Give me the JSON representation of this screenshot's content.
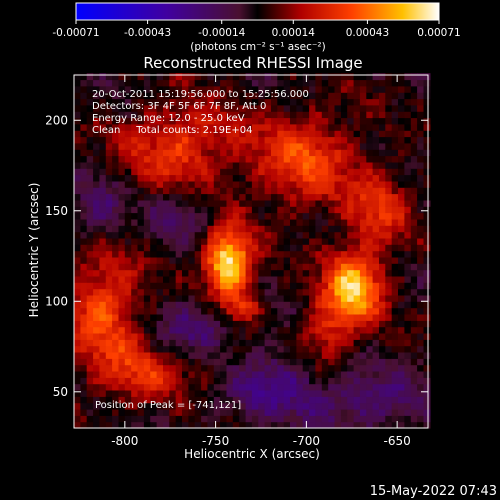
{
  "chart_data": {
    "type": "heatmap",
    "title": "Reconstructed RHESSI Image",
    "xlabel": "Heliocentric X (arcsec)",
    "ylabel": "Heliocentric Y (arcsec)",
    "xlim": [
      -828,
      -633
    ],
    "ylim": [
      30,
      225
    ],
    "xticks": [
      -800,
      -750,
      -700,
      -650
    ],
    "yticks": [
      50,
      100,
      150,
      200
    ],
    "colorbar": {
      "range": [
        -0.00071,
        0.00071
      ],
      "ticks": [
        -0.00071,
        -0.00043,
        -0.00014,
        0.00014,
        0.00043,
        0.00071
      ],
      "tick_labels": [
        "-0.00071",
        "-0.00043",
        "-0.00014",
        "0.00014",
        "0.00043",
        "0.00071"
      ],
      "unit_label": "(photons cm⁻² s⁻¹ asec⁻²)"
    },
    "annotations": [
      "20-Oct-2011 15:19:56.000 to 15:25:56.000",
      "Detectors: 3F 4F 5F 6F 7F 8F, Att 0",
      "Energy Range: 12.0 - 25.0 keV",
      "Clean     Total counts: 2.19E+04"
    ],
    "peak_label": "Position of Peak = [-741,121]",
    "peak_position": [
      -741,
      121
    ],
    "footer_date": "15-May-2022 07:43",
    "sources": [
      {
        "x": -743,
        "y": 121,
        "sx": 9,
        "sy": 13,
        "amp": 0.00071
      },
      {
        "x": -674,
        "y": 108,
        "sx": 11,
        "sy": 14,
        "amp": 0.00058
      },
      {
        "x": -735,
        "y": 96,
        "sx": 6,
        "sy": 5,
        "amp": 0.0003
      },
      {
        "x": -770,
        "y": 186,
        "sx": 22,
        "sy": 16,
        "amp": 0.00032
      },
      {
        "x": -702,
        "y": 178,
        "sx": 20,
        "sy": 18,
        "amp": 0.00034
      },
      {
        "x": -812,
        "y": 95,
        "sx": 14,
        "sy": 24,
        "amp": 0.00036
      },
      {
        "x": -790,
        "y": 60,
        "sx": 14,
        "sy": 12,
        "amp": 0.00024
      },
      {
        "x": -750,
        "y": 65,
        "sx": 16,
        "sy": 10,
        "amp": 0.00016
      },
      {
        "x": -690,
        "y": 80,
        "sx": 10,
        "sy": 14,
        "amp": 0.00026
      },
      {
        "x": -660,
        "y": 150,
        "sx": 12,
        "sy": 16,
        "amp": 0.00026
      },
      {
        "x": -815,
        "y": 150,
        "sx": 10,
        "sy": 14,
        "amp": -0.0002
      },
      {
        "x": -720,
        "y": 55,
        "sx": 22,
        "sy": 14,
        "amp": -0.00026
      },
      {
        "x": -665,
        "y": 45,
        "sx": 22,
        "sy": 12,
        "amp": -0.00022
      },
      {
        "x": -760,
        "y": 85,
        "sx": 14,
        "sy": 12,
        "amp": -0.00022
      },
      {
        "x": -770,
        "y": 148,
        "sx": 12,
        "sy": 10,
        "amp": -0.00016
      }
    ]
  }
}
